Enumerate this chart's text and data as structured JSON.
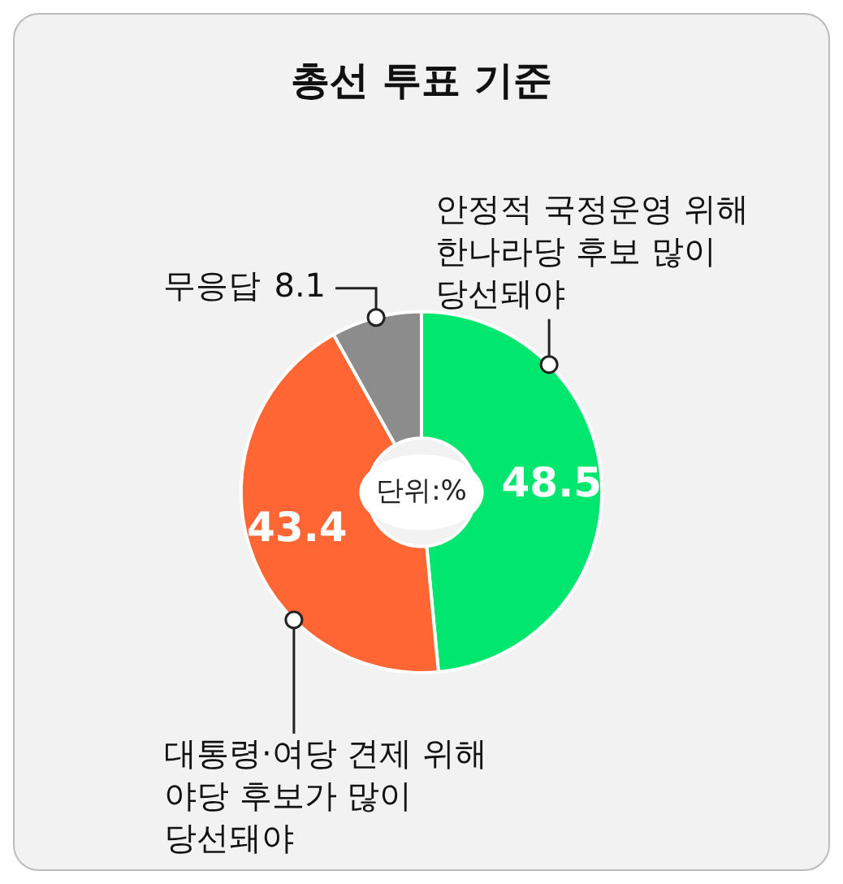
{
  "chart_data": {
    "type": "donut",
    "title": "총선 투표 기준",
    "categories": [
      "안정적 국정운영 위해 한나라당 후보 많이 당선돼야",
      "대통령·여당 견제 위해 야당 후보가 많이 당선돼야",
      "무응답"
    ],
    "values": [
      48.5,
      43.4,
      8.1
    ],
    "colors": [
      "#00e66e",
      "#ff6633",
      "#8c8c8c"
    ],
    "data_labels": true,
    "annotations": [
      "단위:%"
    ],
    "legend": false
  }
}
